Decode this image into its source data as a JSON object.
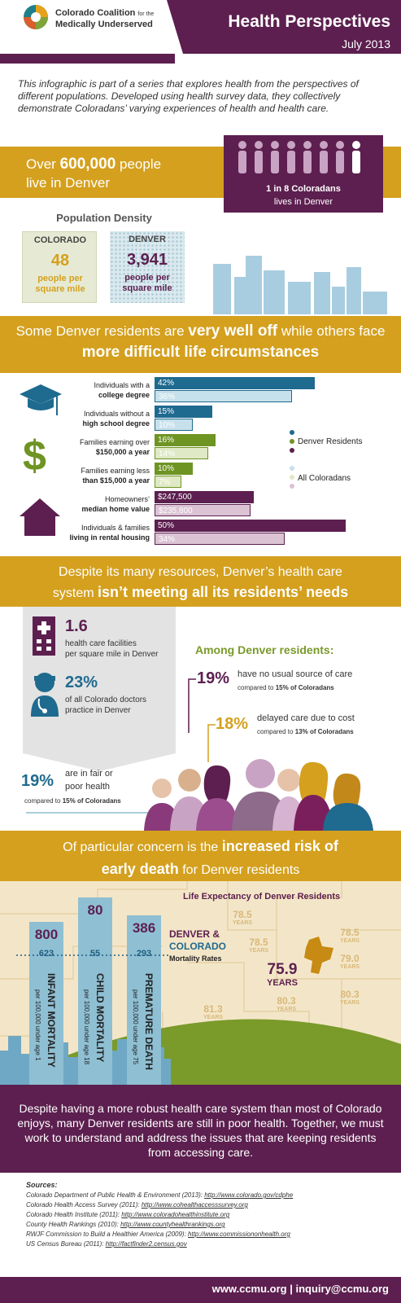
{
  "header": {
    "org_line1": "Colorado Coalition",
    "org_line1_small": "for the",
    "org_line2": "Medically Underserved",
    "title": "Health Perspectives",
    "date": "July 2013"
  },
  "intro": "This infographic is part of a series that explores health from the perspectives of different populations. Developed using health survey data, they collectively demonstrate Coloradans’ varying experiences of health and health care.",
  "population": {
    "pre": "Over",
    "count": "600,000",
    "post": "people",
    "line2": "live in Denver",
    "card_bold": "1 in 8 Coloradans",
    "card_text": "lives in Denver",
    "people_highlighted": 1,
    "people_total": 8
  },
  "density": {
    "title": "Population Density",
    "colorado_label": "COLORADO",
    "colorado_value": "48",
    "denver_label": "DENVER",
    "denver_value": "3,941",
    "unit_line1": "people per",
    "unit_line2": "square mile"
  },
  "band2": {
    "pre": "Some Denver residents are",
    "bold1": "very well off",
    "mid": "while others face",
    "bold2": "more difficult life circumstances"
  },
  "comparisons": {
    "items": [
      {
        "line1": "Individuals with a",
        "line2": "college degree",
        "denver": "42%",
        "colorado": "36%",
        "denver_pct": 42,
        "colorado_pct": 36,
        "color": "#1f6a8f",
        "light": "#c7e1ec"
      },
      {
        "line1": "Individuals without a",
        "line2": "high school degree",
        "denver": "15%",
        "colorado": "10%",
        "denver_pct": 15,
        "colorado_pct": 10,
        "color": "#1f6a8f",
        "light": "#c7e1ec"
      },
      {
        "line1": "Families earning over",
        "line2": "$150,000 a year",
        "denver": "16%",
        "colorado": "14%",
        "denver_pct": 16,
        "colorado_pct": 14,
        "color": "#6e9423",
        "light": "#dfe9c5"
      },
      {
        "line1": "Families earning less",
        "line2": "than $15,000 a year",
        "denver": "10%",
        "colorado": "7%",
        "denver_pct": 10,
        "colorado_pct": 7,
        "color": "#6e9423",
        "light": "#dfe9c5"
      },
      {
        "line1": "Homeowners’",
        "line2": "median home value",
        "denver": "$247,500",
        "colorado": "$235,800",
        "denver_pct": 26,
        "colorado_pct": 25,
        "color": "#5c1f4f",
        "light": "#dbc3d4"
      },
      {
        "line1": "Individuals & families",
        "line2": "living in rental housing",
        "denver": "50%",
        "colorado": "34%",
        "denver_pct": 50,
        "colorado_pct": 34,
        "color": "#5c1f4f",
        "light": "#dbc3d4"
      }
    ],
    "legend_denver": "Denver Residents",
    "legend_colorado": "All Coloradans"
  },
  "band3": {
    "line1": "Despite its many resources, Denver’s health care",
    "line2_pre": "system",
    "line2_bold": "isn’t meeting all its residents’ needs"
  },
  "resources": {
    "facilities_value": "1.6",
    "facilities_line1": "health care facilities",
    "facilities_line2": "per square mile in Denver",
    "doctors_value": "23%",
    "doctors_line1": "of all Colorado doctors",
    "doctors_line2": "practice in Denver"
  },
  "residents": {
    "heading": "Among Denver residents:",
    "stat1_value": "19%",
    "stat1_text": "have no usual source of care",
    "stat1_compare": "compared to",
    "stat1_compare_value": "15%",
    "stat1_compare_suffix": "of Coloradans",
    "stat2_value": "18%",
    "stat2_text": "delayed care due to cost",
    "stat2_compare": "compared to",
    "stat2_compare_value": "13%",
    "stat2_compare_suffix": "of Coloradans",
    "stat3_value": "19%",
    "stat3_line1": "are in fair or",
    "stat3_line2": "poor health",
    "stat3_compare": "compared to",
    "stat3_compare_value": "15%",
    "stat3_compare_suffix": "of Coloradans"
  },
  "band4": {
    "line1_pre": "Of particular concern is the",
    "line1_bold": "increased risk of",
    "line2_bold": "early death",
    "line2_post": "for Denver residents"
  },
  "life_expectancy": {
    "title": "Life Expectancy of Denver Residents",
    "unit": "YEARS",
    "denver_value": "75.9",
    "others": [
      "78.5",
      "78.5",
      "78.5",
      "79.0",
      "81.3",
      "80.3",
      "80.3"
    ]
  },
  "mortality": {
    "legend_line1": "DENVER &",
    "legend_line2": "COLORADO",
    "legend_line3": "Mortality Rates",
    "items": [
      {
        "denver": "800",
        "colorado": "623",
        "label": "INFANT MORTALITY",
        "sub": "per 100,000 under age 1"
      },
      {
        "denver": "80",
        "colorado": "55",
        "label": "CHILD MORTALITY",
        "sub": "per 100,000 under age 18"
      },
      {
        "denver": "386",
        "colorado": "293",
        "label": "PREMATURE DEATH",
        "sub": "per 100,000 under age 75"
      }
    ]
  },
  "conclusion": "Despite having a more robust health care system than most of Colorado enjoys, many Denver residents are still in poor health. Together, we must work to understand and address the issues that are keeping residents from accessing care.",
  "sources": {
    "heading": "Sources:",
    "items": [
      {
        "text": "Colorado Department of Public Health & Environment (2013):",
        "url": "http://www.colorado.gov/cdphe"
      },
      {
        "text": "Colorado Health Access Survey (2011):",
        "url": "http://www.cohealthaccesssurvey.org"
      },
      {
        "text": "Colorado Health Institute (2011):",
        "url": "http://www.coloradohealthinstitute.org"
      },
      {
        "text": "County Health Rankings (2010):",
        "url": "http://www.countyhealthrankings.org"
      },
      {
        "text": "RWJF Commission to Build a Healthier America (2009):",
        "url": "http://www.commissiononhealth.org"
      },
      {
        "text": "US Census Bureau (2011):",
        "url": "http://factfinder2.census.gov"
      }
    ]
  },
  "footer": "www.ccmu.org | inquiry@ccmu.org",
  "colors": {
    "purple": "#5c1f4f",
    "gold": "#d4a01e",
    "blue": "#1f6a8f",
    "green": "#6e9423"
  }
}
